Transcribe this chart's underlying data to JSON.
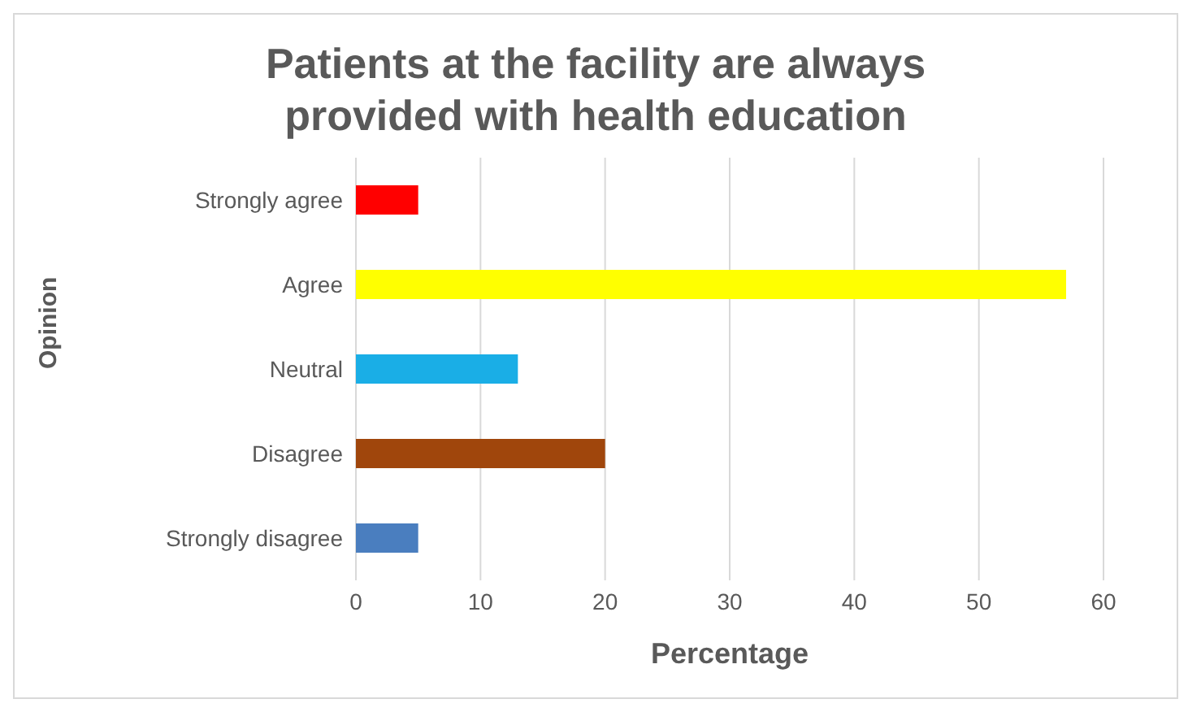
{
  "chart_data": {
    "type": "bar",
    "orientation": "horizontal",
    "title": "Patients at the facility are always provided with health education",
    "xlabel": "Percentage",
    "ylabel": "Opinion",
    "categories": [
      "Strongly agree",
      "Agree",
      "Neutral",
      "Disagree",
      "Strongly disagree"
    ],
    "values": [
      5,
      57,
      13,
      20,
      5
    ],
    "colors": [
      "#ff0000",
      "#ffff00",
      "#1aaee6",
      "#a0460c",
      "#4a7ebf"
    ],
    "xlim": [
      0,
      60
    ],
    "xticks": [
      0,
      10,
      20,
      30,
      40,
      50,
      60
    ],
    "grid": "x",
    "legend": false
  }
}
